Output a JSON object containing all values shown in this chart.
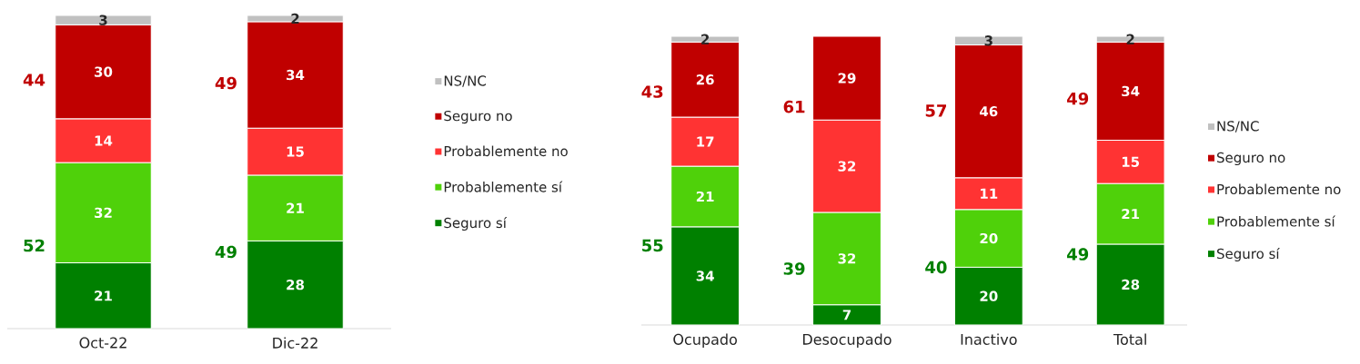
{
  "chart_data": [
    {
      "type": "bar",
      "stacked": true,
      "categories": [
        "Oct-22",
        "Dic-22"
      ],
      "data_labels": true,
      "legend": "right",
      "tick_labels": "x",
      "series": [
        {
          "name": "Seguro sí",
          "color": "#008000",
          "values": [
            21,
            28
          ]
        },
        {
          "name": "Probablemente sí",
          "color": "#4fd10a",
          "values": [
            32,
            21
          ]
        },
        {
          "name": "Probablemente no",
          "color": "#ff3333",
          "values": [
            14,
            15
          ]
        },
        {
          "name": "Seguro no",
          "color": "#c00000",
          "values": [
            30,
            34
          ]
        },
        {
          "name": "NS/NC",
          "color": "#c0c0c0",
          "values": [
            3,
            2
          ]
        }
      ],
      "annotations": [
        "44",
        "52",
        "49",
        "49"
      ]
    },
    {
      "type": "bar",
      "stacked": true,
      "categories": [
        "Ocupado",
        "Desocupado",
        "Inactivo",
        "Total"
      ],
      "data_labels": true,
      "legend": "right",
      "tick_labels": "x",
      "series": [
        {
          "name": "Seguro sí",
          "color": "#008000",
          "values": [
            34,
            7,
            20,
            28
          ]
        },
        {
          "name": "Probablemente sí",
          "color": "#4fd10a",
          "values": [
            21,
            32,
            20,
            21
          ]
        },
        {
          "name": "Probablemente no",
          "color": "#ff3333",
          "values": [
            17,
            32,
            11,
            15
          ]
        },
        {
          "name": "Seguro no",
          "color": "#c00000",
          "values": [
            26,
            29,
            46,
            34
          ]
        },
        {
          "name": "NS/NC",
          "color": "#c0c0c0",
          "values": [
            2,
            null,
            3,
            2
          ]
        }
      ],
      "annotations": [
        "43",
        "55",
        "61",
        "39",
        "57",
        "40",
        "49",
        "49"
      ]
    }
  ]
}
